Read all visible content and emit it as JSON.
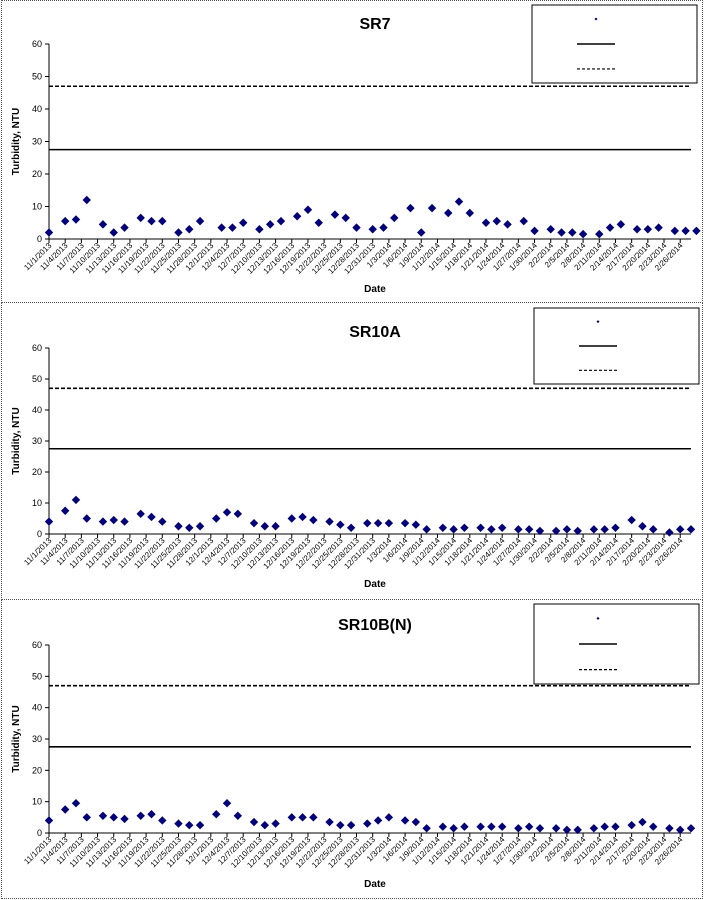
{
  "chart_data": [
    {
      "type": "scatter",
      "title": "SR7",
      "xlabel": "Date",
      "ylabel": "Turbidity, NTU",
      "ylim": [
        0,
        60
      ],
      "yticks": [
        0,
        10,
        20,
        30,
        40,
        50,
        60
      ],
      "x_range": [
        "11/1/2013",
        "2/28/2014"
      ],
      "xtick_labels": [
        "11/1/2013",
        "11/4/2013",
        "11/7/2013",
        "11/10/2013",
        "11/13/2013",
        "11/16/2013",
        "11/19/2013",
        "11/22/2013",
        "11/25/2013",
        "11/28/2013",
        "12/1/2013",
        "12/4/2013",
        "12/7/2013",
        "12/10/2013",
        "12/13/2013",
        "12/16/2013",
        "12/19/2013",
        "12/22/2013",
        "12/25/2013",
        "12/28/2013",
        "12/31/2013",
        "1/3/2014",
        "1/6/2014",
        "1/9/2014",
        "1/12/2014",
        "1/15/2014",
        "1/18/2014",
        "1/21/2014",
        "1/24/2014",
        "1/27/2014",
        "1/30/2014",
        "2/2/2014",
        "2/5/2014",
        "2/8/2014",
        "2/11/2014",
        "2/14/2014",
        "2/17/2014",
        "2/20/2014",
        "2/23/2014",
        "2/26/2014"
      ],
      "series": [
        {
          "name": "",
          "color": "#000080",
          "marker": "diamond",
          "x": [
            "11/1/2013",
            "11/4/2013",
            "11/6/2013",
            "11/8/2013",
            "11/11/2013",
            "11/13/2013",
            "11/15/2013",
            "11/18/2013",
            "11/20/2013",
            "11/22/2013",
            "11/25/2013",
            "11/27/2013",
            "11/29/2013",
            "12/3/2013",
            "12/5/2013",
            "12/7/2013",
            "12/10/2013",
            "12/12/2013",
            "12/14/2013",
            "12/17/2013",
            "12/19/2013",
            "12/21/2013",
            "12/24/2013",
            "12/26/2013",
            "12/28/2013",
            "12/31/2013",
            "1/2/2014",
            "1/4/2014",
            "1/7/2014",
            "1/9/2014",
            "1/11/2014",
            "1/14/2014",
            "1/16/2014",
            "1/18/2014",
            "1/21/2014",
            "1/23/2014",
            "1/25/2014",
            "1/28/2014",
            "1/30/2014",
            "2/2/2014",
            "2/4/2014",
            "2/6/2014",
            "2/8/2014",
            "2/11/2014",
            "2/13/2014",
            "2/15/2014",
            "2/18/2014",
            "2/20/2014",
            "2/22/2014",
            "2/25/2014",
            "2/27/2014",
            "3/1/2014"
          ],
          "y": [
            2,
            5.5,
            6,
            12,
            4.5,
            2,
            3.5,
            6.5,
            5.5,
            5.5,
            2,
            3,
            5.5,
            3.5,
            3.5,
            5,
            3,
            4.5,
            5.5,
            7,
            9,
            5,
            7.5,
            6.5,
            3.5,
            3,
            3.5,
            6.5,
            9.5,
            2,
            9.5,
            8,
            11.5,
            8,
            5,
            5.5,
            4.5,
            5.5,
            2.5,
            3,
            2,
            2,
            1.5,
            1.5,
            3.5,
            4.5,
            3,
            3,
            3.5,
            2.5,
            2.5,
            2.5
          ]
        }
      ],
      "reference_lines": [
        {
          "y": 27.5,
          "style": "solid"
        },
        {
          "y": 47,
          "style": "dashed"
        }
      ],
      "legend_position": "top-right"
    },
    {
      "type": "scatter",
      "title": "SR10A",
      "xlabel": "Date",
      "ylabel": "Turbidity, NTU",
      "ylim": [
        0,
        60
      ],
      "yticks": [
        0,
        10,
        20,
        30,
        40,
        50,
        60
      ],
      "x_range": [
        "11/1/2013",
        "2/28/2014"
      ],
      "xtick_labels": [
        "11/1/2013",
        "11/4/2013",
        "11/7/2013",
        "11/10/2013",
        "11/13/2013",
        "11/16/2013",
        "11/19/2013",
        "11/22/2013",
        "11/25/2013",
        "11/28/2013",
        "12/1/2013",
        "12/4/2013",
        "12/7/2013",
        "12/10/2013",
        "12/13/2013",
        "12/16/2013",
        "12/19/2013",
        "12/22/2013",
        "12/25/2013",
        "12/28/2013",
        "12/31/2013",
        "1/3/2014",
        "1/6/2014",
        "1/9/2014",
        "1/12/2014",
        "1/15/2014",
        "1/18/2014",
        "1/21/2014",
        "1/24/2014",
        "1/27/2014",
        "1/30/2014",
        "2/2/2014",
        "2/5/2014",
        "2/8/2014",
        "2/11/2014",
        "2/14/2014",
        "2/17/2014",
        "2/20/2014",
        "2/23/2014",
        "2/26/2014"
      ],
      "series": [
        {
          "name": "",
          "color": "#000080",
          "marker": "diamond",
          "x": [
            "11/1/2013",
            "11/4/2013",
            "11/6/2013",
            "11/8/2013",
            "11/11/2013",
            "11/13/2013",
            "11/15/2013",
            "11/18/2013",
            "11/20/2013",
            "11/22/2013",
            "11/25/2013",
            "11/27/2013",
            "11/29/2013",
            "12/2/2013",
            "12/4/2013",
            "12/6/2013",
            "12/9/2013",
            "12/11/2013",
            "12/13/2013",
            "12/16/2013",
            "12/18/2013",
            "12/20/2013",
            "12/23/2013",
            "12/25/2013",
            "12/27/2013",
            "12/30/2013",
            "1/1/2014",
            "1/3/2014",
            "1/6/2014",
            "1/8/2014",
            "1/10/2014",
            "1/13/2014",
            "1/15/2014",
            "1/17/2014",
            "1/20/2014",
            "1/22/2014",
            "1/24/2014",
            "1/27/2014",
            "1/29/2014",
            "1/31/2014",
            "2/3/2014",
            "2/5/2014",
            "2/7/2014",
            "2/10/2014",
            "2/12/2014",
            "2/14/2014",
            "2/17/2014",
            "2/19/2014",
            "2/21/2014",
            "2/24/2014",
            "2/26/2014",
            "2/28/2014"
          ],
          "y": [
            4,
            7.5,
            11,
            5,
            4,
            4.5,
            4,
            6.5,
            5.5,
            4,
            2.5,
            2,
            2.5,
            5,
            7,
            6.5,
            3.5,
            2.5,
            2.5,
            5,
            5.5,
            4.5,
            4,
            3,
            2,
            3.5,
            3.5,
            3.5,
            3.5,
            3,
            1.5,
            2,
            1.5,
            2,
            2,
            1.5,
            2,
            1.5,
            1.5,
            1,
            1,
            1.5,
            1,
            1.5,
            1.5,
            2,
            4.5,
            2.5,
            1.5,
            0.5,
            1.5,
            1.5
          ]
        }
      ],
      "reference_lines": [
        {
          "y": 27.5,
          "style": "solid"
        },
        {
          "y": 47,
          "style": "dashed"
        }
      ],
      "legend_position": "top-right"
    },
    {
      "type": "scatter",
      "title": "SR10B(N)",
      "xlabel": "Date",
      "ylabel": "Turbidity, NTU",
      "ylim": [
        0,
        60
      ],
      "yticks": [
        0,
        10,
        20,
        30,
        40,
        50,
        60
      ],
      "x_range": [
        "11/1/2013",
        "2/28/2014"
      ],
      "xtick_labels": [
        "11/1/2013",
        "11/4/2013",
        "11/7/2013",
        "11/10/2013",
        "11/13/2013",
        "11/16/2013",
        "11/19/2013",
        "11/22/2013",
        "11/25/2013",
        "11/28/2013",
        "12/1/2013",
        "12/4/2013",
        "12/7/2013",
        "12/10/2013",
        "12/13/2013",
        "12/16/2013",
        "12/19/2013",
        "12/22/2013",
        "12/25/2013",
        "12/28/2013",
        "12/31/2013",
        "1/3/2014",
        "1/6/2014",
        "1/9/2014",
        "1/12/2014",
        "1/15/2014",
        "1/18/2014",
        "1/21/2014",
        "1/24/2014",
        "1/27/2014",
        "1/30/2014",
        "2/2/2014",
        "2/5/2014",
        "2/8/2014",
        "2/11/2014",
        "2/14/2014",
        "2/17/2014",
        "2/20/2014",
        "2/23/2014",
        "2/26/2014"
      ],
      "series": [
        {
          "name": "",
          "color": "#000080",
          "marker": "diamond",
          "x": [
            "11/1/2013",
            "11/4/2013",
            "11/6/2013",
            "11/8/2013",
            "11/11/2013",
            "11/13/2013",
            "11/15/2013",
            "11/18/2013",
            "11/20/2013",
            "11/22/2013",
            "11/25/2013",
            "11/27/2013",
            "11/29/2013",
            "12/2/2013",
            "12/4/2013",
            "12/6/2013",
            "12/9/2013",
            "12/11/2013",
            "12/13/2013",
            "12/16/2013",
            "12/18/2013",
            "12/20/2013",
            "12/23/2013",
            "12/25/2013",
            "12/27/2013",
            "12/30/2013",
            "1/1/2014",
            "1/3/2014",
            "1/6/2014",
            "1/8/2014",
            "1/10/2014",
            "1/13/2014",
            "1/15/2014",
            "1/17/2014",
            "1/20/2014",
            "1/22/2014",
            "1/24/2014",
            "1/27/2014",
            "1/29/2014",
            "1/31/2014",
            "2/3/2014",
            "2/5/2014",
            "2/7/2014",
            "2/10/2014",
            "2/12/2014",
            "2/14/2014",
            "2/17/2014",
            "2/19/2014",
            "2/21/2014",
            "2/24/2014",
            "2/26/2014",
            "2/28/2014"
          ],
          "y": [
            4,
            7.5,
            9.5,
            5,
            5.5,
            5,
            4.5,
            5.5,
            6,
            4,
            3,
            2.5,
            2.5,
            6,
            9.5,
            5.5,
            3.5,
            2.5,
            3,
            5,
            5,
            5,
            3.5,
            2.5,
            2.5,
            3,
            4,
            5,
            4,
            3.5,
            1.5,
            2,
            1.5,
            2,
            2,
            2,
            2,
            1.5,
            2,
            1.5,
            1.5,
            1,
            1,
            1.5,
            2,
            2,
            2.5,
            3.5,
            2,
            1.5,
            1,
            1.5
          ]
        }
      ],
      "reference_lines": [
        {
          "y": 27.5,
          "style": "solid"
        },
        {
          "y": 47,
          "style": "dashed"
        }
      ],
      "legend_position": "top-right"
    }
  ]
}
